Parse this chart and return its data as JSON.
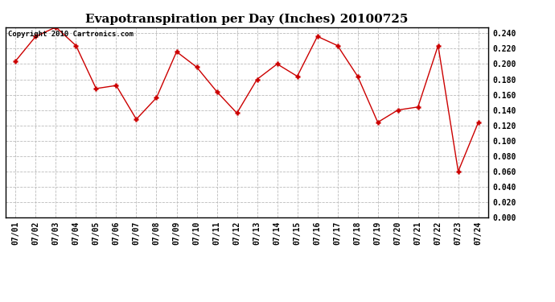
{
  "title": "Evapotranspiration per Day (Inches) 20100725",
  "copyright": "Copyright 2010 Cartronics.com",
  "x_labels": [
    "07/01",
    "07/02",
    "07/03",
    "07/04",
    "07/05",
    "07/06",
    "07/07",
    "07/08",
    "07/09",
    "07/10",
    "07/11",
    "07/12",
    "07/13",
    "07/14",
    "07/15",
    "07/16",
    "07/17",
    "07/18",
    "07/19",
    "07/20",
    "07/21",
    "07/22",
    "07/23",
    "07/24"
  ],
  "y_values": [
    0.204,
    0.236,
    0.248,
    0.224,
    0.168,
    0.172,
    0.128,
    0.156,
    0.216,
    0.196,
    0.164,
    0.136,
    0.18,
    0.2,
    0.184,
    0.236,
    0.224,
    0.184,
    0.124,
    0.14,
    0.144,
    0.224,
    0.06,
    0.124
  ],
  "line_color": "#cc0000",
  "marker": "+",
  "marker_size": 5,
  "ylim": [
    0.0,
    0.248
  ],
  "yticks": [
    0.0,
    0.02,
    0.04,
    0.06,
    0.08,
    0.1,
    0.12,
    0.14,
    0.16,
    0.18,
    0.2,
    0.22,
    0.24
  ],
  "background_color": "#ffffff",
  "grid_color": "#bbbbbb",
  "title_fontsize": 11,
  "tick_fontsize": 7,
  "copyright_fontsize": 6.5
}
